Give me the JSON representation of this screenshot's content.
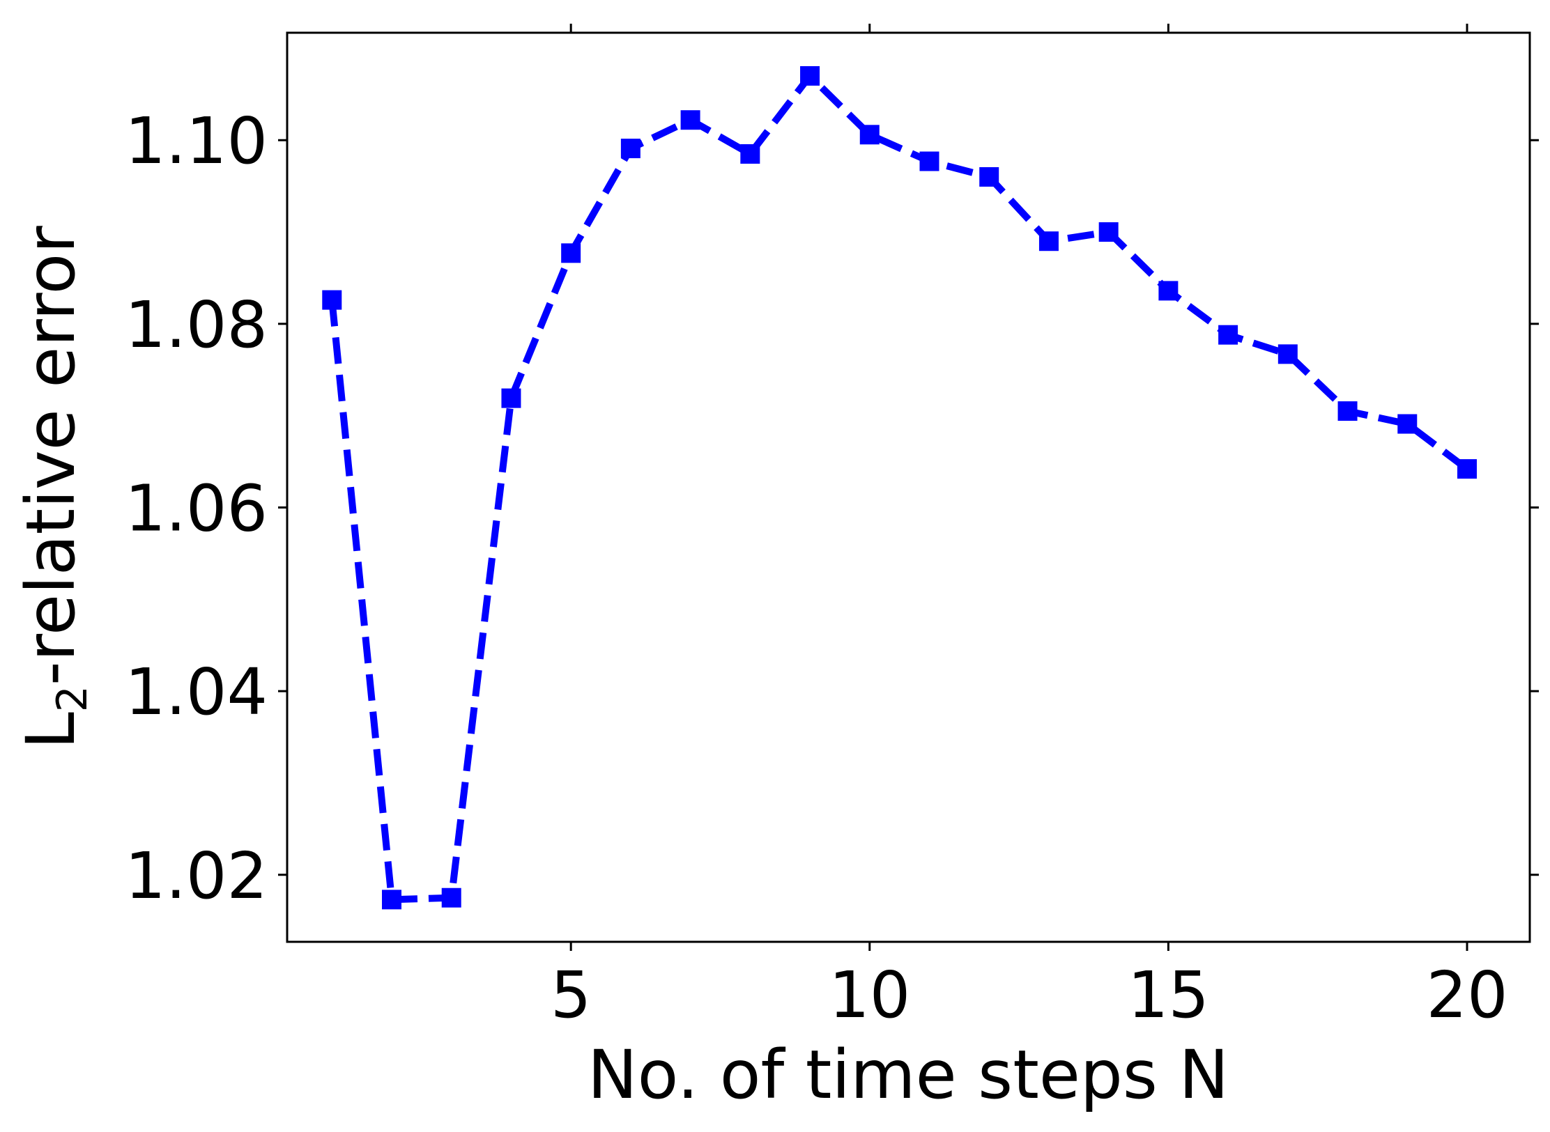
{
  "chart_data": {
    "type": "line",
    "xlabel": "No. of time steps N",
    "ylabel_main": "L",
    "ylabel_sub": "2",
    "ylabel_rest": "-relative error",
    "xlim": [
      0.25,
      21.05
    ],
    "ylim": [
      1.0127,
      1.1117
    ],
    "xticks": [
      5,
      10,
      15,
      20
    ],
    "xtick_labels": [
      "5",
      "10",
      "15",
      "20"
    ],
    "yticks": [
      1.02,
      1.04,
      1.06,
      1.08,
      1.1
    ],
    "ytick_labels": [
      "1.02",
      "1.04",
      "1.06",
      "1.08",
      "1.10"
    ],
    "grid": false,
    "series": [
      {
        "color": "#0000ff",
        "line_style": "dashed",
        "marker": "square",
        "x": [
          1,
          2,
          3,
          4,
          5,
          6,
          7,
          8,
          9,
          10,
          11,
          12,
          13,
          14,
          15,
          16,
          17,
          18,
          19,
          20
        ],
        "y": [
          1.0826,
          1.0173,
          1.0175,
          1.0719,
          1.0877,
          1.0991,
          1.1022,
          1.0985,
          1.107,
          1.1006,
          1.0977,
          1.096,
          1.089,
          1.09,
          1.0836,
          1.0788,
          1.0767,
          1.0705,
          1.0691,
          1.0642
        ]
      }
    ]
  }
}
